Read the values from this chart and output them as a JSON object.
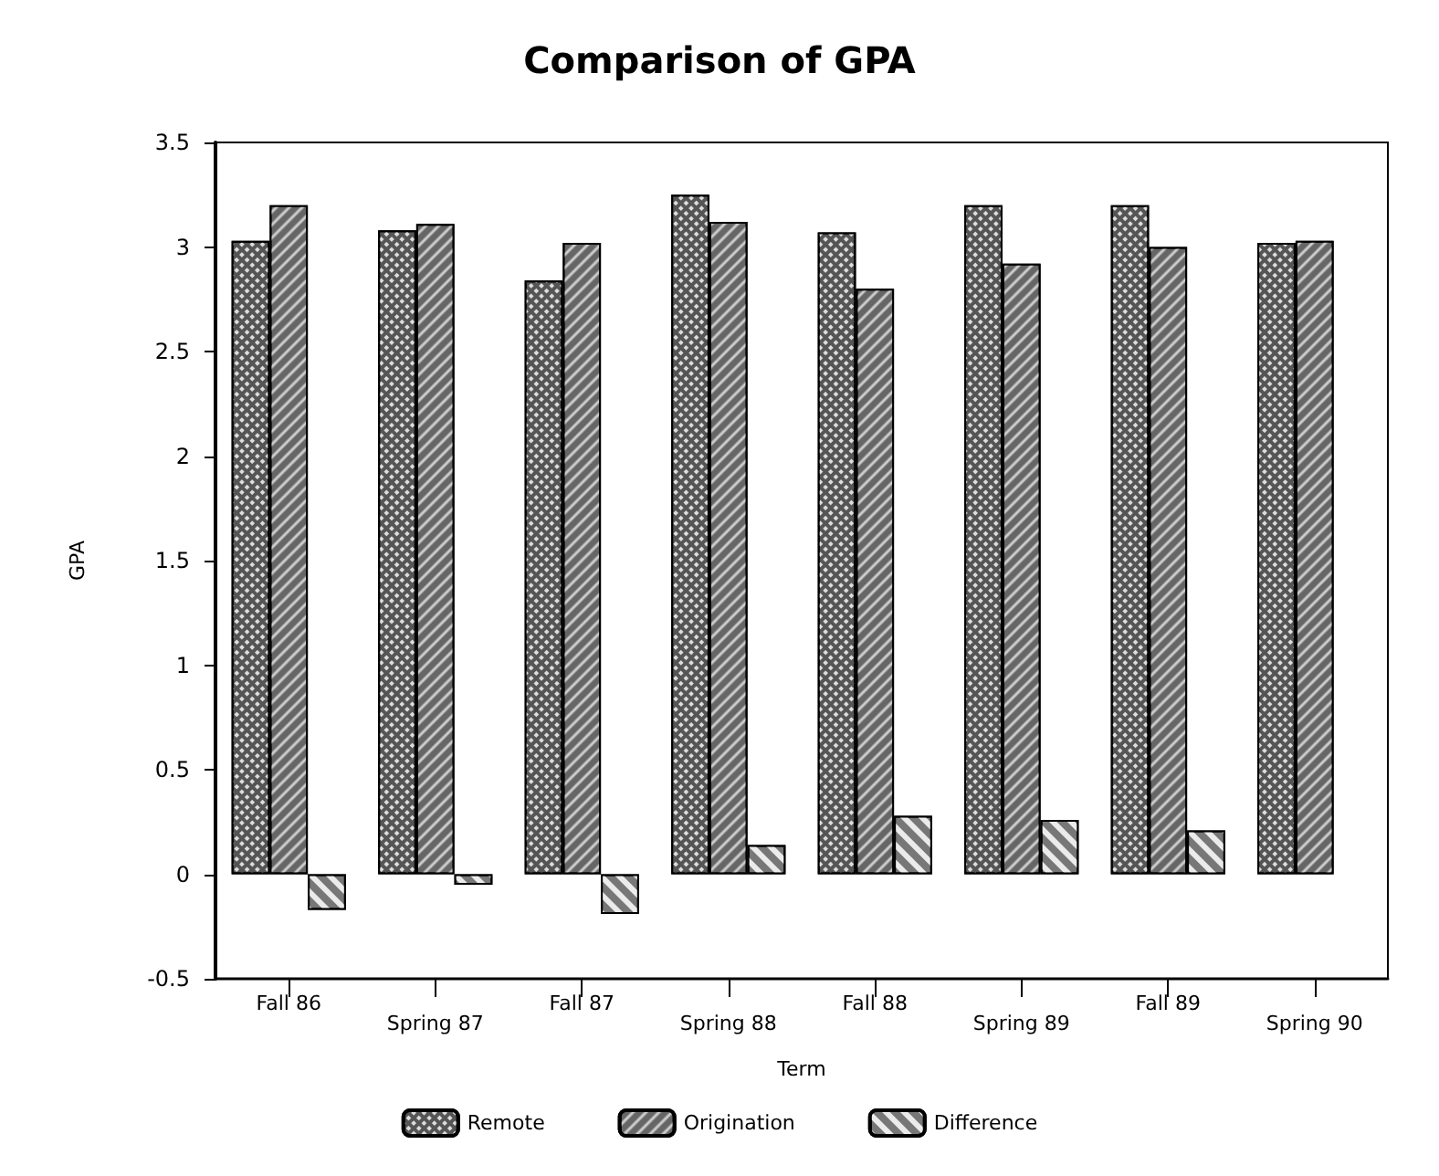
{
  "chart_data": {
    "type": "bar",
    "title": "Comparison of GPA",
    "xlabel": "Term",
    "ylabel": "GPA",
    "categories": [
      "Fall 86",
      "Spring 87",
      "Fall 87",
      "Spring 88",
      "Fall 88",
      "Spring 89",
      "Fall 89",
      "Spring 90"
    ],
    "series": [
      {
        "name": "Remote",
        "color": "#555555",
        "values": [
          3.03,
          3.08,
          2.84,
          3.25,
          3.07,
          3.2,
          3.2,
          3.02
        ]
      },
      {
        "name": "Origination",
        "color": "#666666",
        "values": [
          3.2,
          3.11,
          3.02,
          3.12,
          2.8,
          2.92,
          3.0,
          3.03
        ]
      },
      {
        "name": "Difference",
        "color": "#777777",
        "values": [
          -0.17,
          -0.05,
          -0.19,
          0.14,
          0.28,
          0.26,
          0.21,
          null
        ]
      }
    ],
    "ylim": [
      -0.5,
      3.5
    ],
    "yticks": [
      -0.5,
      0,
      0.5,
      1,
      1.5,
      2,
      2.5,
      3,
      3.5
    ],
    "grid": false,
    "legend": "bottom"
  }
}
